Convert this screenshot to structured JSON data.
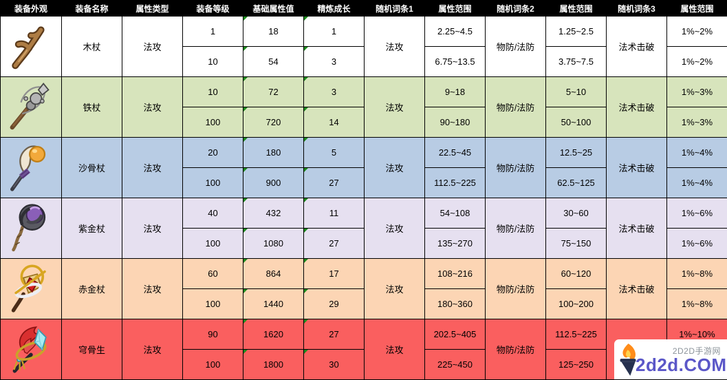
{
  "table": {
    "headers": [
      "装备外观",
      "装备名称",
      "属性类型",
      "装备等级",
      "基础属性值",
      "精炼成长",
      "随机词条1",
      "属性范围",
      "随机词条2",
      "属性范围",
      "随机词条3",
      "属性范围"
    ],
    "rows": [
      {
        "icon": "wooden-staff",
        "name": "木杖",
        "type": "法攻",
        "color": "#ffffff",
        "entry1": "法攻",
        "entry2": "物防/法防",
        "entry3": "法术击破",
        "sub": [
          {
            "level": "1",
            "base": "18",
            "refine": "1",
            "range1": "2.25~4.5",
            "range2": "1.25~2.5",
            "range3": "1%~2%"
          },
          {
            "level": "10",
            "base": "54",
            "refine": "3",
            "range1": "6.75~13.5",
            "range2": "3.75~7.5",
            "range3": "1%~2%"
          }
        ]
      },
      {
        "icon": "iron-staff",
        "name": "铁杖",
        "type": "法攻",
        "color": "#d7e4bc",
        "entry1": "法攻",
        "entry2": "物防/法防",
        "entry3": "法术击破",
        "sub": [
          {
            "level": "10",
            "base": "72",
            "refine": "3",
            "range1": "9~18",
            "range2": "5~10",
            "range3": "1%~3%"
          },
          {
            "level": "100",
            "base": "720",
            "refine": "14",
            "range1": "90~180",
            "range2": "50~100",
            "range3": "1%~3%"
          }
        ]
      },
      {
        "icon": "sand-bone-staff",
        "name": "沙骨杖",
        "type": "法攻",
        "color": "#b8cce4",
        "entry1": "法攻",
        "entry2": "物防/法防",
        "entry3": "法术击破",
        "sub": [
          {
            "level": "20",
            "base": "180",
            "refine": "5",
            "range1": "22.5~45",
            "range2": "12.5~25",
            "range3": "1%~4%"
          },
          {
            "level": "100",
            "base": "900",
            "refine": "27",
            "range1": "112.5~225",
            "range2": "62.5~125",
            "range3": "1%~4%"
          }
        ]
      },
      {
        "icon": "purple-gold-staff",
        "name": "紫金杖",
        "type": "法攻",
        "color": "#e6e0f0",
        "entry1": "法攻",
        "entry2": "物防/法防",
        "entry3": "法术击破",
        "sub": [
          {
            "level": "40",
            "base": "432",
            "refine": "11",
            "range1": "54~108",
            "range2": "30~60",
            "range3": "1%~6%"
          },
          {
            "level": "100",
            "base": "1080",
            "refine": "27",
            "range1": "135~270",
            "range2": "75~150",
            "range3": "1%~6%"
          }
        ]
      },
      {
        "icon": "red-gold-staff",
        "name": "赤金杖",
        "type": "法攻",
        "color": "#fcd5b4",
        "entry1": "法攻",
        "entry2": "物防/法防",
        "entry3": "法术击破",
        "sub": [
          {
            "level": "60",
            "base": "864",
            "refine": "17",
            "range1": "108~216",
            "range2": "60~120",
            "range3": "1%~8%"
          },
          {
            "level": "100",
            "base": "1440",
            "refine": "29",
            "range1": "180~360",
            "range2": "100~200",
            "range3": "1%~8%"
          }
        ]
      },
      {
        "icon": "crimson-feather-staff",
        "name": "穹骨生",
        "type": "法攻",
        "color": "#fa5f5f",
        "entry1": "法攻",
        "entry2": "物防/法防",
        "entry3": "",
        "sub": [
          {
            "level": "90",
            "base": "1620",
            "refine": "27",
            "range1": "202.5~405",
            "range2": "112.5~225",
            "range3": "1%~10%"
          },
          {
            "level": "100",
            "base": "1800",
            "refine": "30",
            "range1": "225~450",
            "range2": "125~250",
            "range3": ""
          }
        ]
      }
    ]
  },
  "colors": {
    "header_bg": "#000000",
    "header_text": "#ffffff",
    "grid_line": "#000000",
    "corner_flag": "#1c8a1c",
    "row_backgrounds": [
      "#ffffff",
      "#d7e4bc",
      "#b8cce4",
      "#e6e0f0",
      "#fcd5b4",
      "#fa5f5f"
    ]
  },
  "watermark": {
    "site_label": "2D2D手游网",
    "domain": "2d2d.COM",
    "icon": "torch-icon",
    "domain_color": "#5b57c8",
    "label_color": "#8d949b"
  }
}
